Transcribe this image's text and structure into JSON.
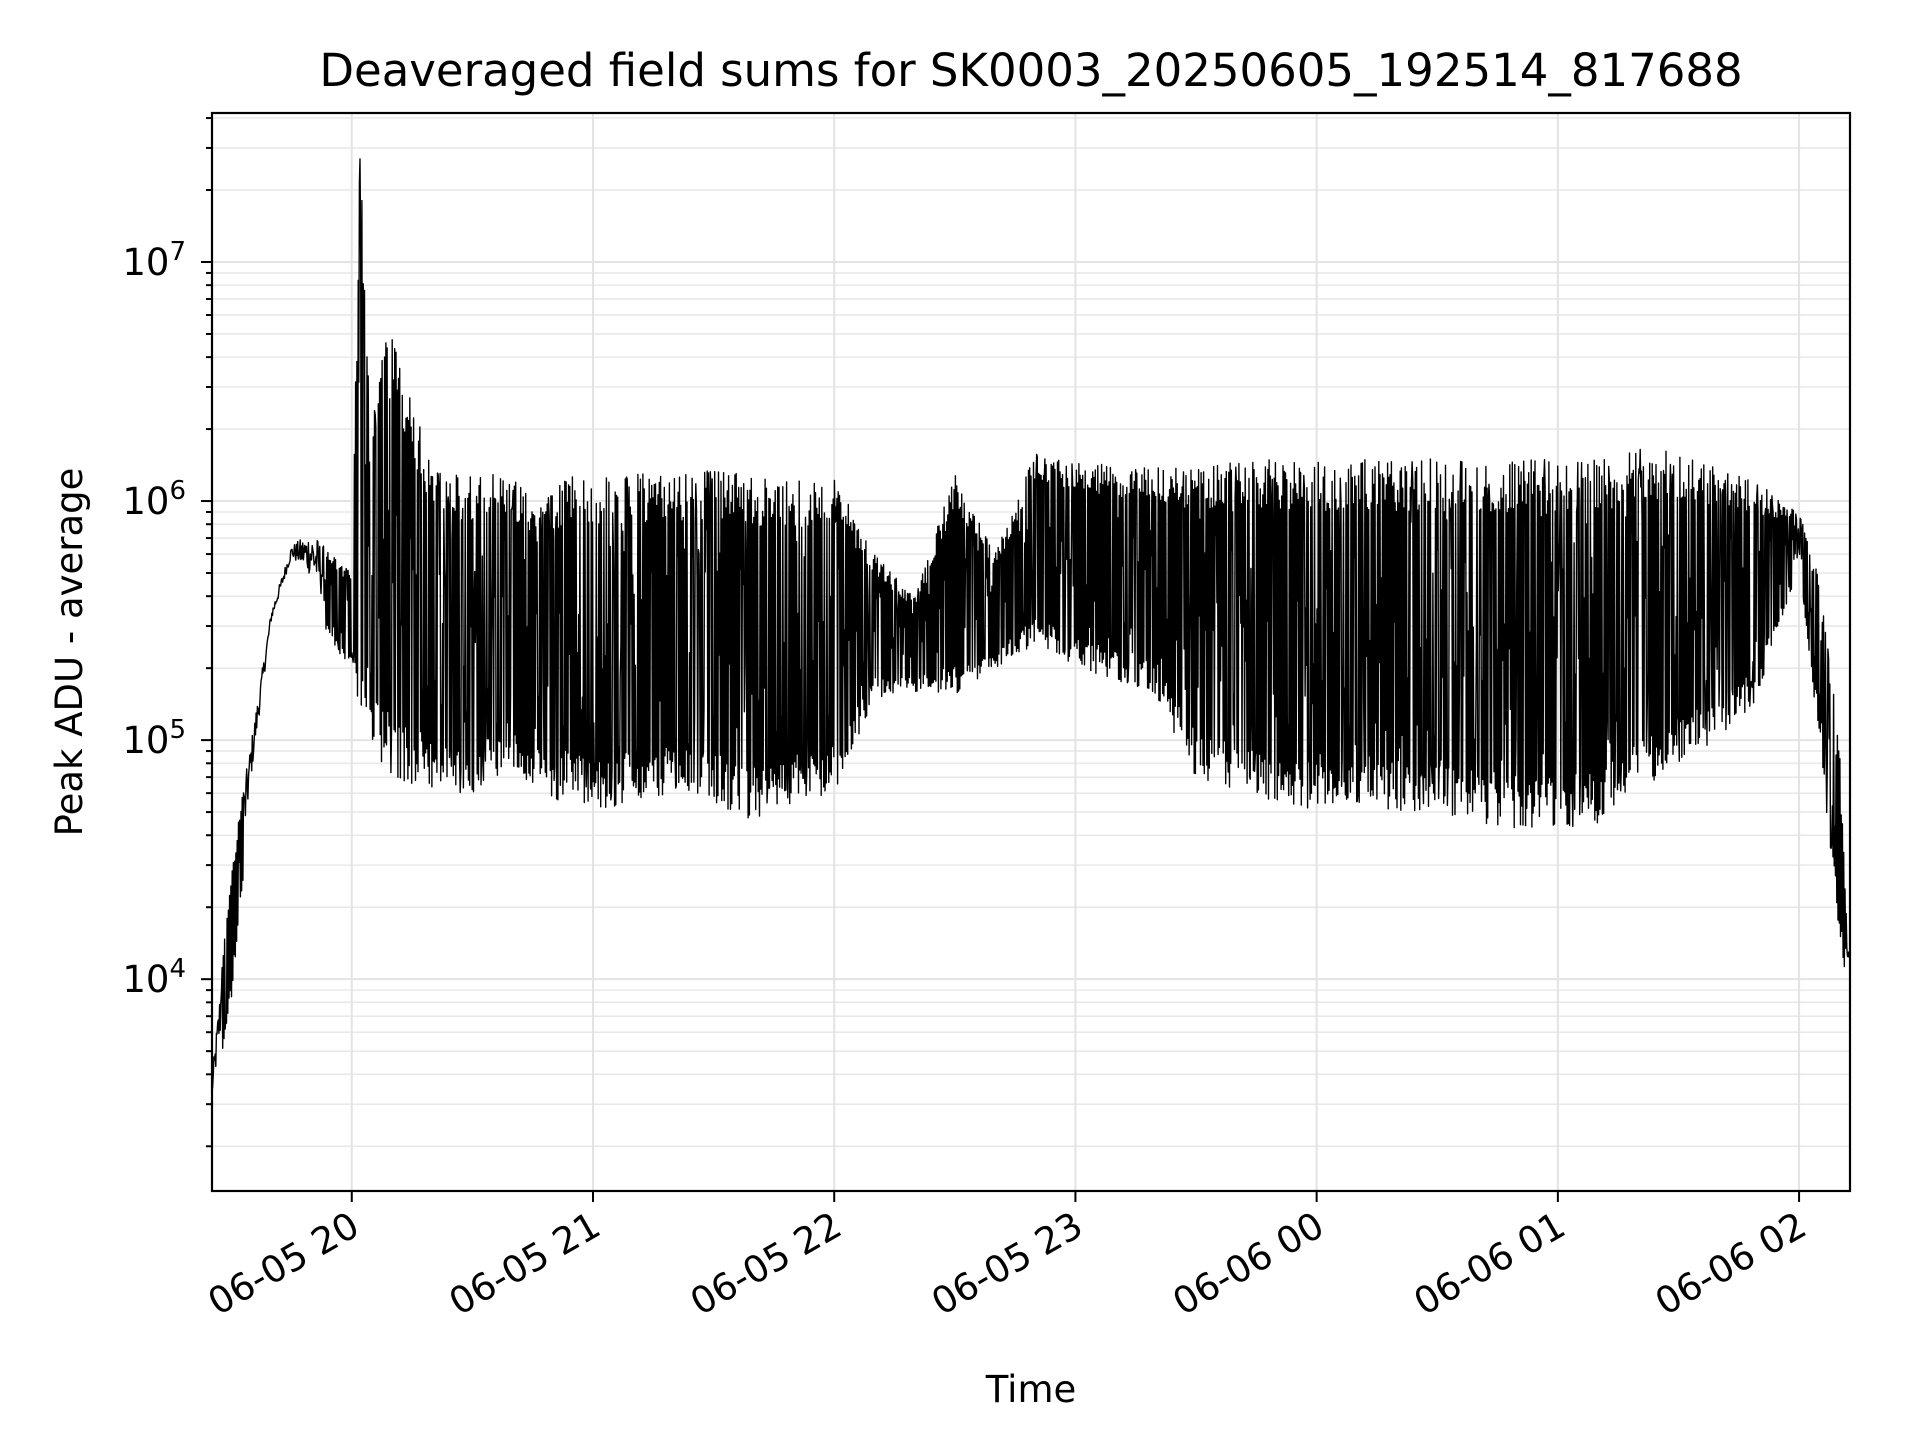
{
  "chart_data": {
    "type": "line",
    "title": "Deaveraged field sums for SK0003_20250605_192514_817688",
    "xlabel": "Time",
    "ylabel": "Peak ADU - average",
    "yscale": "log",
    "ylim": [
      1300,
      42000000
    ],
    "xlim": [
      "2025-06-05 19:25:14",
      "2025-06-06 02:12:40"
    ],
    "grid": "on (major and minor)",
    "legend": "none",
    "line_color": "#000000",
    "x_ticks": [
      {
        "x": "2025-06-05 20:00",
        "label": "06-05 20"
      },
      {
        "x": "2025-06-05 21:00",
        "label": "06-05 21"
      },
      {
        "x": "2025-06-05 22:00",
        "label": "06-05 22"
      },
      {
        "x": "2025-06-05 23:00",
        "label": "06-05 23"
      },
      {
        "x": "2025-06-06 00:00",
        "label": "06-06 00"
      },
      {
        "x": "2025-06-06 01:00",
        "label": "06-06 01"
      },
      {
        "x": "2025-06-06 02:00",
        "label": "06-06 02"
      }
    ],
    "y_ticks": [
      {
        "value": 10000,
        "base": "10",
        "exp": "4"
      },
      {
        "value": 100000,
        "base": "10",
        "exp": "5"
      },
      {
        "value": 1000000,
        "base": "10",
        "exp": "6"
      },
      {
        "value": 10000000,
        "base": "10",
        "exp": "7"
      }
    ],
    "series": [
      {
        "values_type": "envelope (approximate min/max per time bin)",
        "x": [
          "2025-06-05 19:25",
          "2025-06-05 19:30",
          "2025-06-05 19:35",
          "2025-06-05 19:40",
          "2025-06-05 19:45",
          "2025-06-05 19:50",
          "2025-06-05 19:55",
          "2025-06-05 20:00",
          "2025-06-05 20:02",
          "2025-06-05 20:05",
          "2025-06-05 20:10",
          "2025-06-05 20:15",
          "2025-06-05 20:20",
          "2025-06-05 20:25",
          "2025-06-05 20:30",
          "2025-06-05 20:35",
          "2025-06-05 20:40",
          "2025-06-05 20:45",
          "2025-06-05 20:50",
          "2025-06-05 20:55",
          "2025-06-05 21:00",
          "2025-06-05 21:10",
          "2025-06-05 21:20",
          "2025-06-05 21:30",
          "2025-06-05 21:40",
          "2025-06-05 21:50",
          "2025-06-05 22:00",
          "2025-06-05 22:10",
          "2025-06-05 22:20",
          "2025-06-05 22:30",
          "2025-06-05 22:40",
          "2025-06-05 22:50",
          "2025-06-05 23:00",
          "2025-06-05 23:10",
          "2025-06-05 23:20",
          "2025-06-05 23:30",
          "2025-06-05 23:40",
          "2025-06-05 23:50",
          "2025-06-06 00:00",
          "2025-06-06 00:10",
          "2025-06-06 00:20",
          "2025-06-06 00:30",
          "2025-06-06 00:40",
          "2025-06-06 00:50",
          "2025-06-06 01:00",
          "2025-06-06 01:10",
          "2025-06-06 01:20",
          "2025-06-06 01:30",
          "2025-06-06 01:40",
          "2025-06-06 01:50",
          "2025-06-06 01:55",
          "2025-06-06 02:00",
          "2025-06-06 02:05",
          "2025-06-06 02:10",
          "2025-06-06 02:12"
        ],
        "min": [
          2700,
          8000,
          60000,
          300000,
          550000,
          400000,
          250000,
          200000,
          100000,
          90000,
          70000,
          65000,
          60000,
          60000,
          60000,
          70000,
          70000,
          65000,
          55000,
          60000,
          50000,
          55000,
          60000,
          55000,
          45000,
          55000,
          60000,
          150000,
          160000,
          150000,
          200000,
          250000,
          200000,
          180000,
          150000,
          70000,
          60000,
          55000,
          50000,
          55000,
          50000,
          50000,
          45000,
          42000,
          42000,
          45000,
          60000,
          80000,
          100000,
          150000,
          300000,
          500000,
          100000,
          15000,
          9000
        ],
        "max": [
          3500,
          30000,
          100000,
          350000,
          650000,
          750000,
          600000,
          500000,
          27000000,
          3000000,
          5700000,
          2600000,
          1400000,
          1300000,
          1300000,
          1350000,
          1300000,
          1000000,
          1100000,
          1350000,
          1300000,
          1300000,
          1300000,
          1350000,
          1300000,
          1200000,
          1300000,
          600000,
          400000,
          1300000,
          600000,
          1600000,
          1500000,
          1400000,
          1400000,
          1400000,
          1450000,
          1500000,
          1500000,
          1500000,
          1500000,
          1500000,
          1500000,
          1500000,
          1500000,
          1500000,
          1650000,
          1600000,
          1400000,
          1200000,
          1000000,
          900000,
          500000,
          100000,
          15000
        ]
      }
    ]
  }
}
